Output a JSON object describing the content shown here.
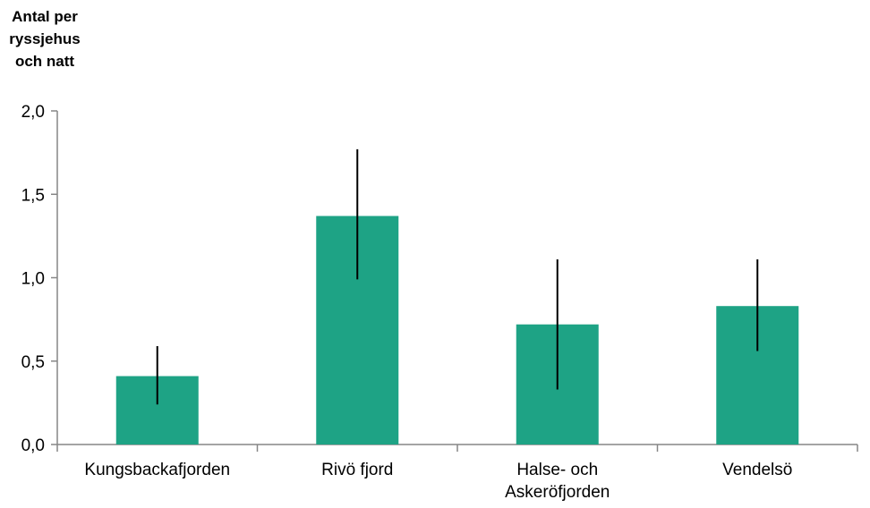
{
  "chart_data": {
    "type": "bar",
    "title": "",
    "ylabel_lines": [
      "Antal per",
      "ryssjehus",
      "och natt"
    ],
    "xlabel": "",
    "ylim": [
      0,
      2.0
    ],
    "yticks": [
      {
        "value": 0.0,
        "label": "0,0"
      },
      {
        "value": 0.5,
        "label": "0,5"
      },
      {
        "value": 1.0,
        "label": "1,0"
      },
      {
        "value": 1.5,
        "label": "1,5"
      },
      {
        "value": 2.0,
        "label": "2,0"
      }
    ],
    "categories": [
      {
        "lines": [
          "Kungsbackafjorden"
        ]
      },
      {
        "lines": [
          "Rivö fjord"
        ]
      },
      {
        "lines": [
          "Halse- och",
          "Askeröfjorden"
        ]
      },
      {
        "lines": [
          "Vendelsö"
        ]
      }
    ],
    "values": [
      0.41,
      1.37,
      0.72,
      0.83
    ],
    "error_low": [
      0.24,
      0.99,
      0.33,
      0.56
    ],
    "error_high": [
      0.59,
      1.77,
      1.11,
      1.11
    ],
    "bar_color": "#1ea385",
    "error_color": "#000000",
    "axis_color": "#868686",
    "grid": false,
    "legend": "none"
  }
}
